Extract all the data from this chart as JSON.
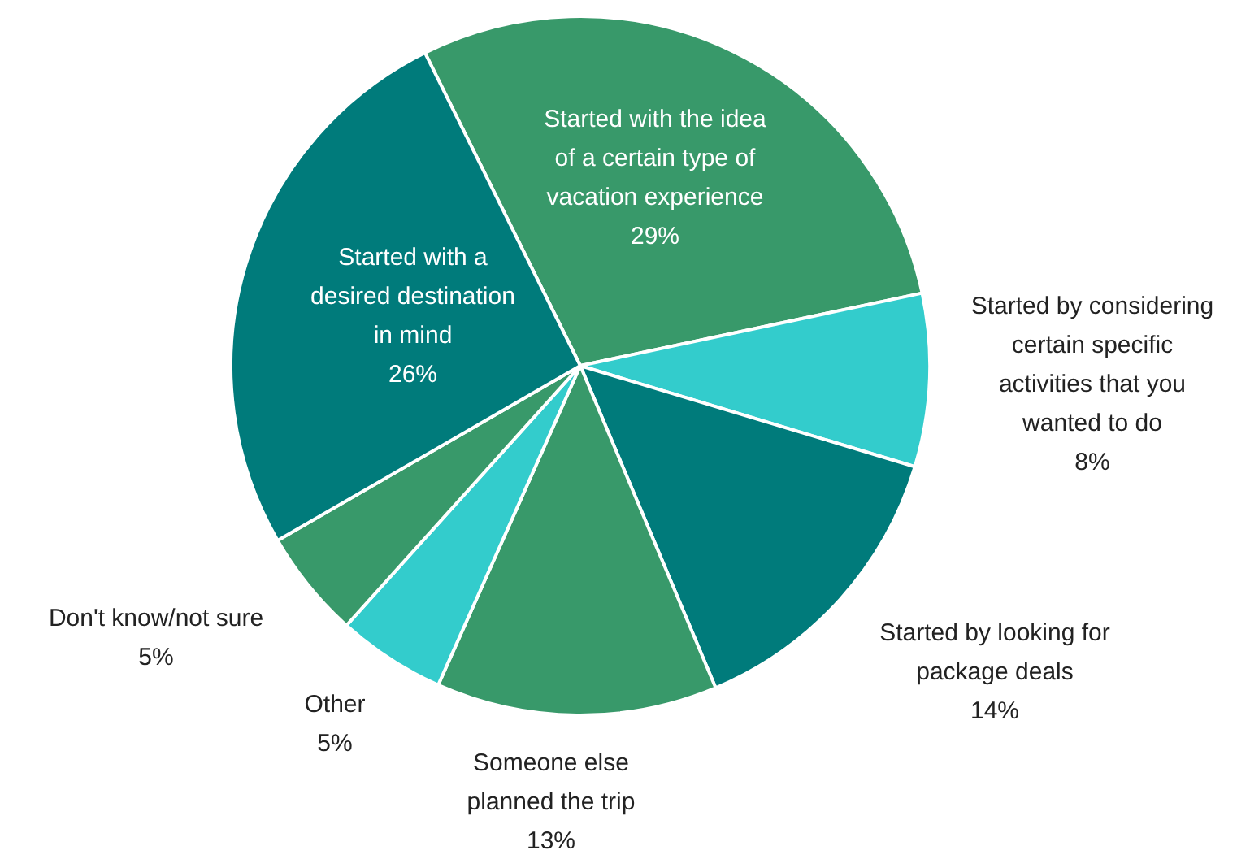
{
  "chart_data": {
    "type": "pie",
    "categories": [
      "Started with the idea of a certain type of vacation experience",
      "Started by considering certain specific activities that you wanted to do",
      "Started by looking for package deals",
      "Someone else planned the trip",
      "Other",
      "Don't know/not sure",
      "Started with a desired destination in mind"
    ],
    "values": [
      29,
      8,
      14,
      13,
      5,
      5,
      26
    ],
    "value_labels": [
      "29%",
      "8%",
      "14%",
      "13%",
      "5%",
      "5%",
      "26%"
    ],
    "colors": [
      "#38996a",
      "#33cccc",
      "#007b7b",
      "#38996a",
      "#33cccc",
      "#38996a",
      "#007b7b"
    ]
  }
}
